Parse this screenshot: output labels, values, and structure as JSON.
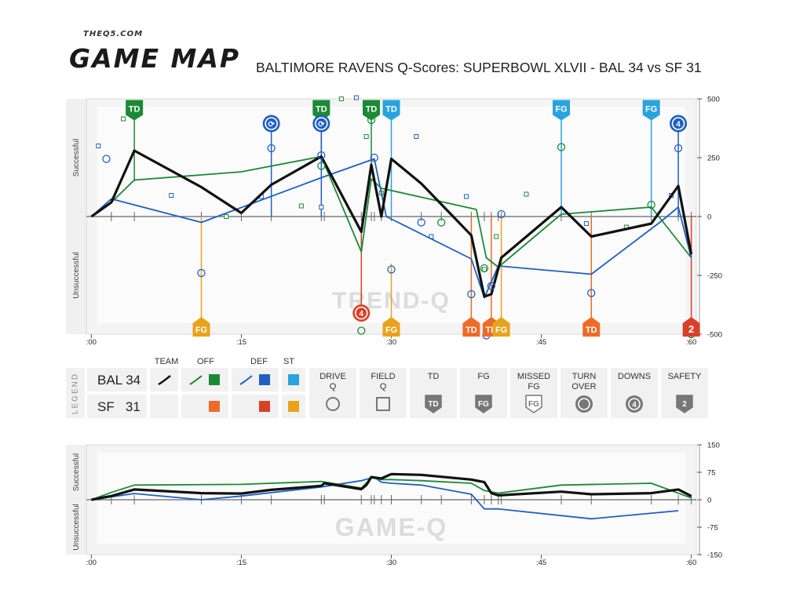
{
  "header": {
    "brand_small": "THEQ5.COM",
    "brand_big": "GAME MAP",
    "title": "BALTIMORE RAVENS Q-Scores: SUPERBOWL XLVII - BAL 34 vs SF 31"
  },
  "colors": {
    "team": "#111111",
    "offense": "#1b8a34",
    "defense": "#1f5fc4",
    "special_teams": "#29a3dd",
    "opp_offense": "#ee6a28",
    "opp_defense": "#d84128",
    "opp_special_teams": "#e8a21c"
  },
  "chart_data": [
    {
      "id": "trend-q",
      "type": "line",
      "watermark": "TREND-Q",
      "ylabel_top": "Successful",
      "ylabel_bottom": "Unsuccessful",
      "xlim": [
        -0.5,
        60.5
      ],
      "ylim": [
        -500,
        500
      ],
      "yticks": [
        500,
        250,
        0,
        -250,
        -500
      ],
      "xticks": [
        {
          "v": 0,
          "label": ":00"
        },
        {
          "v": 15,
          "label": ":15"
        },
        {
          "v": 30,
          "label": ":30"
        },
        {
          "v": 45,
          "label": ":45"
        },
        {
          "v": 60,
          "label": ":60"
        }
      ],
      "series": [
        {
          "key": "offense",
          "x": [
            0,
            2,
            4.3,
            15,
            23,
            27,
            28,
            29,
            38.5,
            39.5,
            40.7,
            47,
            56,
            60
          ],
          "y": [
            0,
            60,
            155,
            190,
            255,
            -150,
            160,
            120,
            30,
            -175,
            -215,
            10,
            40,
            -175
          ]
        },
        {
          "key": "defense",
          "x": [
            0,
            2,
            11,
            23,
            28.3,
            29.5,
            38,
            39.3,
            40.7,
            50,
            57,
            58.7,
            60
          ],
          "y": [
            0,
            75,
            -25,
            165,
            245,
            0,
            -180,
            -345,
            -210,
            -245,
            -20,
            40,
            -175
          ]
        },
        {
          "key": "team",
          "x": [
            0,
            2,
            4.3,
            11,
            15,
            18,
            23,
            27,
            28,
            29,
            30,
            33,
            38,
            39.3,
            40,
            41,
            47,
            50,
            56,
            58.7,
            60
          ],
          "y": [
            0,
            60,
            280,
            125,
            15,
            135,
            255,
            -65,
            220,
            0,
            245,
            140,
            -80,
            -340,
            -330,
            -175,
            40,
            -85,
            -30,
            130,
            -160
          ]
        }
      ],
      "drive_points": [
        {
          "x": 1.5,
          "y": 245,
          "c": "defense"
        },
        {
          "x": 11,
          "y": -240,
          "c": "defense"
        },
        {
          "x": 18,
          "y": 290,
          "c": "defense"
        },
        {
          "x": 23,
          "y": 260,
          "c": "defense"
        },
        {
          "x": 23,
          "y": 215,
          "c": "offense"
        },
        {
          "x": 27,
          "y": -485,
          "c": "offense"
        },
        {
          "x": 28,
          "y": 410,
          "c": "offense"
        },
        {
          "x": 28.3,
          "y": 250,
          "c": "defense"
        },
        {
          "x": 30,
          "y": -225,
          "c": "defense"
        },
        {
          "x": 33,
          "y": -25,
          "c": "defense"
        },
        {
          "x": 35,
          "y": -25,
          "c": "offense"
        },
        {
          "x": 38,
          "y": -330,
          "c": "defense"
        },
        {
          "x": 39.3,
          "y": -220,
          "c": "offense"
        },
        {
          "x": 39.5,
          "y": -505,
          "c": "defense"
        },
        {
          "x": 40,
          "y": -295,
          "c": "defense"
        },
        {
          "x": 41,
          "y": 10,
          "c": "defense"
        },
        {
          "x": 47,
          "y": 295,
          "c": "offense"
        },
        {
          "x": 50,
          "y": -325,
          "c": "defense"
        },
        {
          "x": 56,
          "y": 50,
          "c": "offense"
        },
        {
          "x": 58.7,
          "y": 290,
          "c": "defense"
        },
        {
          "x": 60,
          "y": -500,
          "c": "offense"
        }
      ],
      "field_points": [
        {
          "x": 0.7,
          "y": 300,
          "c": "defense"
        },
        {
          "x": 3.2,
          "y": 415,
          "c": "offense"
        },
        {
          "x": 8,
          "y": 90,
          "c": "defense"
        },
        {
          "x": 13.5,
          "y": 0,
          "c": "offense"
        },
        {
          "x": 17,
          "y": 85,
          "c": "defense"
        },
        {
          "x": 21,
          "y": 45,
          "c": "offense"
        },
        {
          "x": 23,
          "y": 40,
          "c": "defense"
        },
        {
          "x": 25,
          "y": 500,
          "c": "offense"
        },
        {
          "x": 26.5,
          "y": 505,
          "c": "defense"
        },
        {
          "x": 27.5,
          "y": 340,
          "c": "offense"
        },
        {
          "x": 29,
          "y": 100,
          "c": "offense"
        },
        {
          "x": 32.5,
          "y": 340,
          "c": "defense"
        },
        {
          "x": 34,
          "y": -85,
          "c": "defense"
        },
        {
          "x": 37.5,
          "y": 85,
          "c": "defense"
        },
        {
          "x": 39.3,
          "y": -225,
          "c": "offense"
        },
        {
          "x": 40.5,
          "y": -85,
          "c": "offense"
        },
        {
          "x": 43.5,
          "y": 95,
          "c": "offense"
        },
        {
          "x": 49.5,
          "y": -30,
          "c": "defense"
        },
        {
          "x": 53.5,
          "y": -45,
          "c": "offense"
        },
        {
          "x": 58,
          "y": 90,
          "c": "defense"
        }
      ],
      "top_markers": [
        {
          "x": 4.3,
          "y": 455,
          "label": "TD",
          "c": "offense",
          "kind": "pin",
          "base": 150
        },
        {
          "x": 18,
          "y": 395,
          "label": "⟳",
          "c": "defense",
          "kind": "circle",
          "base": 0
        },
        {
          "x": 23,
          "y": 455,
          "label": "TD",
          "c": "offense",
          "kind": "pin",
          "base": 260
        },
        {
          "x": 23,
          "y": 395,
          "label": "⟳",
          "c": "defense",
          "kind": "circle",
          "base": 0
        },
        {
          "x": 28,
          "y": 455,
          "label": "TD",
          "c": "offense",
          "kind": "pin",
          "base": 200
        },
        {
          "x": 30,
          "y": 455,
          "label": "TD",
          "c": "special_teams",
          "kind": "pin",
          "base": 0
        },
        {
          "x": 47,
          "y": 455,
          "label": "FG",
          "c": "special_teams",
          "kind": "pin",
          "base": 0
        },
        {
          "x": 56,
          "y": 455,
          "label": "FG",
          "c": "special_teams",
          "kind": "pin",
          "base": 0
        },
        {
          "x": 58.7,
          "y": 395,
          "label": "4",
          "c": "defense",
          "kind": "circle",
          "base": 0
        }
      ],
      "bottom_markers": [
        {
          "x": 11,
          "y": -470,
          "label": "FG",
          "c": "opp_special_teams",
          "kind": "pin",
          "base": 0
        },
        {
          "x": 27,
          "y": -410,
          "label": "4",
          "c": "opp_defense",
          "kind": "circle",
          "base": -50
        },
        {
          "x": 30,
          "y": -470,
          "label": "FG",
          "c": "opp_special_teams",
          "kind": "pin",
          "base": -200
        },
        {
          "x": 38,
          "y": -470,
          "label": "TD",
          "c": "opp_offense",
          "kind": "pin",
          "base": 0
        },
        {
          "x": 40,
          "y": -470,
          "label": "TD",
          "c": "opp_offense",
          "kind": "pin",
          "base": 0
        },
        {
          "x": 41,
          "y": -470,
          "label": "FG",
          "c": "opp_special_teams",
          "kind": "pin",
          "base": 0
        },
        {
          "x": 50,
          "y": -470,
          "label": "TD",
          "c": "opp_offense",
          "kind": "pin",
          "base": 0
        },
        {
          "x": 60,
          "y": -470,
          "label": "2",
          "c": "opp_defense",
          "kind": "pin",
          "base": 0
        }
      ],
      "minor_ticks": [
        2,
        4.3,
        11,
        15,
        18,
        23,
        23.3,
        27,
        28,
        28.3,
        29,
        30,
        33,
        35,
        38,
        39.3,
        40,
        40.7,
        41,
        47,
        50,
        56,
        58.7,
        60
      ]
    },
    {
      "id": "game-q",
      "type": "line",
      "watermark": "GAME-Q",
      "ylabel_top": "Successful",
      "ylabel_bottom": "Unsuccessful",
      "xlim": [
        -0.5,
        60.5
      ],
      "ylim": [
        -150,
        150
      ],
      "yticks": [
        150,
        75,
        0,
        -75,
        -150
      ],
      "xticks": [
        {
          "v": 0,
          "label": ":00"
        },
        {
          "v": 15,
          "label": ":15"
        },
        {
          "v": 30,
          "label": ":30"
        },
        {
          "v": 45,
          "label": ":45"
        },
        {
          "v": 60,
          "label": ":60"
        }
      ],
      "series": [
        {
          "key": "offense",
          "x": [
            0,
            2,
            4.3,
            15,
            23,
            27,
            28,
            29,
            30,
            33,
            38,
            39.3,
            40.7,
            47,
            56,
            60
          ],
          "y": [
            0,
            20,
            40,
            42,
            50,
            32,
            60,
            55,
            55,
            52,
            45,
            25,
            18,
            40,
            45,
            5
          ]
        },
        {
          "key": "defense",
          "x": [
            0,
            4.3,
            11,
            15,
            23,
            27,
            28.3,
            29,
            30,
            33,
            38,
            39.3,
            40.7,
            50,
            58.7
          ],
          "y": [
            0,
            17,
            0,
            10,
            35,
            52,
            62,
            48,
            45,
            40,
            15,
            -25,
            -25,
            -52,
            -30
          ]
        },
        {
          "key": "team",
          "x": [
            0,
            2,
            4.3,
            11,
            15,
            18,
            23,
            23.3,
            27,
            27.5,
            28,
            29,
            30,
            33,
            38,
            39.3,
            40,
            40.7,
            47,
            50,
            56,
            58.7,
            60
          ],
          "y": [
            0,
            10,
            28,
            18,
            17,
            27,
            38,
            45,
            29,
            40,
            62,
            58,
            70,
            68,
            55,
            48,
            18,
            12,
            22,
            15,
            18,
            28,
            10
          ]
        }
      ],
      "minor_ticks": [
        2,
        4.3,
        11,
        15,
        18,
        23,
        23.3,
        27,
        28,
        28.3,
        29,
        30,
        33,
        35,
        38,
        39.3,
        40,
        40.7,
        41,
        47,
        50,
        56,
        58.7,
        60
      ]
    }
  ],
  "legend": {
    "side_label": "LEGEND",
    "col_team": "TEAM",
    "col_off": "OFF",
    "col_def": "DEF",
    "col_st": "ST",
    "rows": [
      {
        "team": "BAL 34"
      },
      {
        "team": "SF   31"
      }
    ],
    "items": [
      {
        "label": "DRIVE\nQ",
        "icon": "drive-circle"
      },
      {
        "label": "FIELD\nQ",
        "icon": "field-square"
      },
      {
        "label": "TD",
        "icon": "td-shield"
      },
      {
        "label": "FG",
        "icon": "fg-shield"
      },
      {
        "label": "MISSED\nFG",
        "icon": "missed-fg-shield"
      },
      {
        "label": "TURN\nOVER",
        "icon": "turnover-circle"
      },
      {
        "label": "DOWNS",
        "icon": "downs-circle"
      },
      {
        "label": "SAFETY",
        "icon": "safety-shield"
      }
    ],
    "icon_text": {
      "td": "TD",
      "fg": "FG",
      "safety": "2",
      "downs": "4"
    }
  }
}
